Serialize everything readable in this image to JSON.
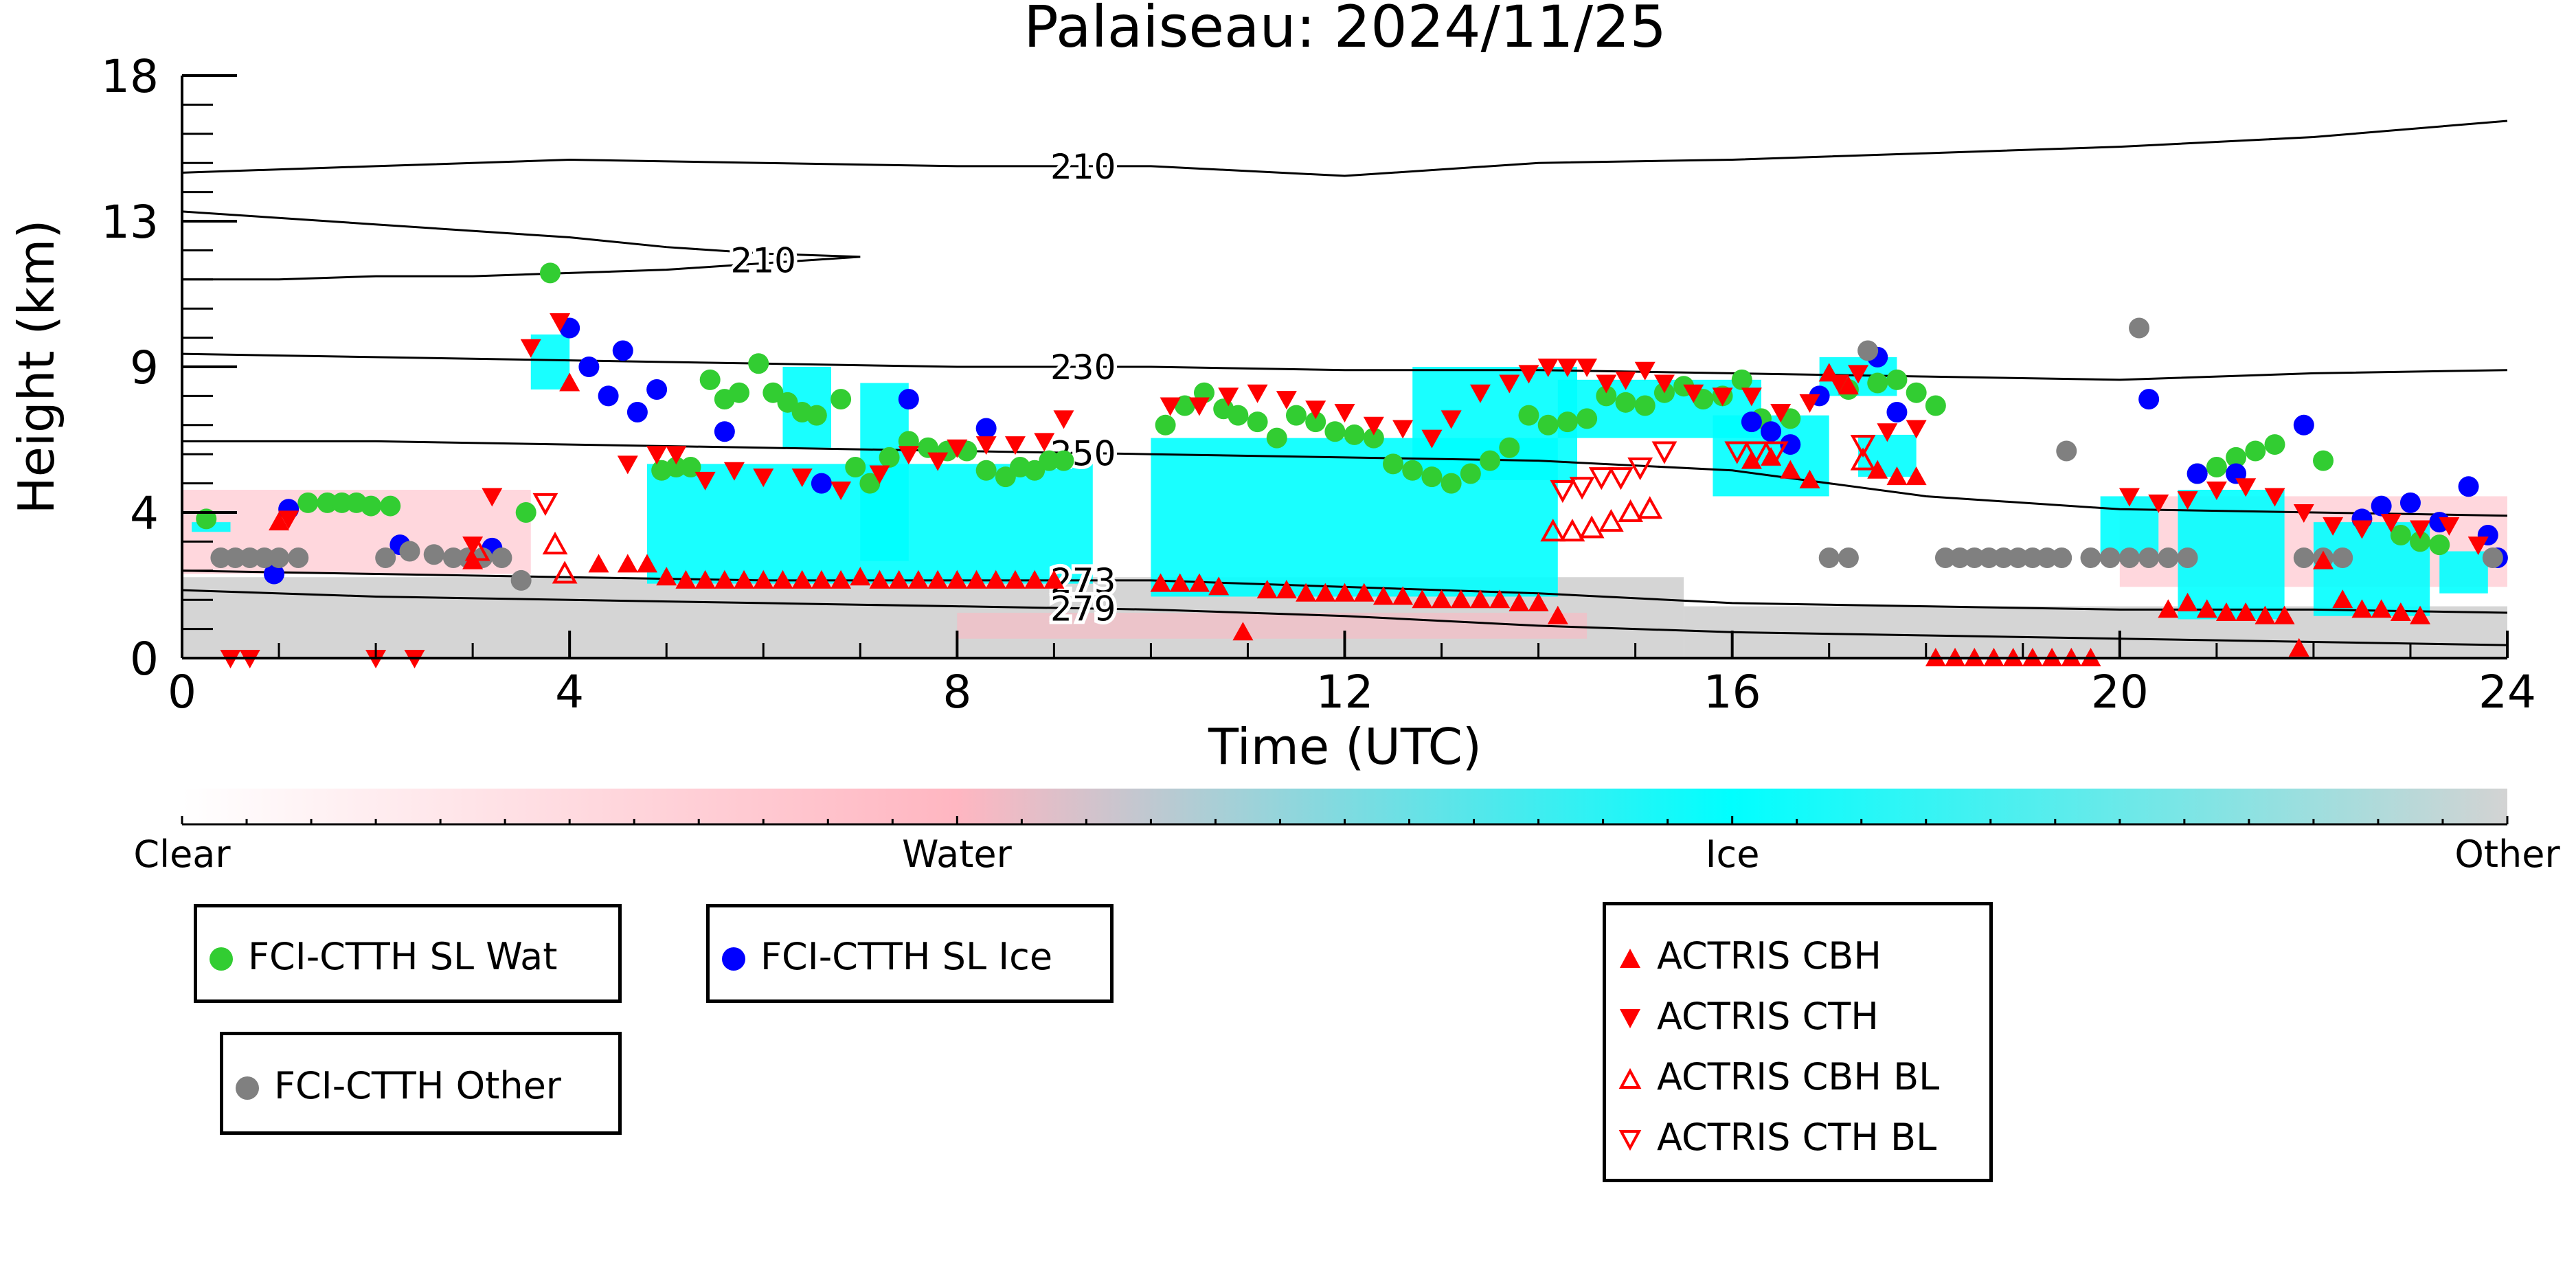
{
  "chart_data": {
    "type": "scatter",
    "title": "Palaiseau: 2024/11/25",
    "xlabel": "Time (UTC)",
    "ylabel": "Height (km)",
    "xlim": [
      0,
      24
    ],
    "ylim": [
      0,
      18
    ],
    "x_ticks": [
      "0",
      "4",
      "8",
      "12",
      "16",
      "20",
      "24"
    ],
    "y_ticks": [
      "0",
      "4",
      "9",
      "13",
      "18"
    ],
    "y_tick_values": [
      0,
      4.5,
      9,
      13.5,
      18
    ],
    "colorbar": {
      "labels": [
        "Clear",
        "Water",
        "Ice",
        "Other"
      ],
      "colors": [
        "#ffffff",
        "#ffb6c1",
        "#00ffff",
        "#d3d3d3"
      ]
    },
    "isotherms": [
      {
        "label": "210",
        "x": [
          0,
          2,
          4,
          6,
          8,
          10,
          12,
          14,
          16,
          18,
          20,
          22,
          24
        ],
        "y": [
          15.0,
          15.2,
          15.4,
          15.3,
          15.2,
          15.2,
          14.9,
          15.3,
          15.4,
          15.6,
          15.8,
          16.1,
          16.6
        ]
      },
      {
        "label": "210",
        "x": [
          0,
          1,
          2,
          3,
          4,
          5,
          6,
          7,
          6,
          5,
          4,
          3,
          2,
          1,
          0
        ],
        "y": [
          13.8,
          13.6,
          13.4,
          13.2,
          13.0,
          12.7,
          12.5,
          12.4,
          12.2,
          12.0,
          11.9,
          11.8,
          11.8,
          11.7,
          11.7
        ]
      },
      {
        "label": "230",
        "x": [
          0,
          2,
          4,
          6,
          8,
          10,
          12,
          14,
          16,
          18,
          20,
          22,
          24
        ],
        "y": [
          9.4,
          9.3,
          9.2,
          9.1,
          9.0,
          9.0,
          8.9,
          8.9,
          8.8,
          8.7,
          8.6,
          8.8,
          8.9
        ]
      },
      {
        "label": "250",
        "x": [
          0,
          2,
          4,
          6,
          8,
          10,
          12,
          14,
          16,
          18,
          20,
          22,
          24
        ],
        "y": [
          6.7,
          6.7,
          6.6,
          6.5,
          6.4,
          6.3,
          6.2,
          6.1,
          5.8,
          5.0,
          4.6,
          4.5,
          4.4
        ]
      },
      {
        "label": "273",
        "x": [
          0,
          2,
          4,
          6,
          8,
          10,
          12,
          14,
          16,
          18,
          20,
          22,
          24
        ],
        "y": [
          2.7,
          2.6,
          2.5,
          2.4,
          2.4,
          2.4,
          2.2,
          2.0,
          1.7,
          1.6,
          1.5,
          1.5,
          1.4
        ]
      },
      {
        "label": "279",
        "x": [
          0,
          2,
          4,
          6,
          8,
          10,
          12,
          14,
          16,
          18,
          20,
          22,
          24
        ],
        "y": [
          2.1,
          1.9,
          1.8,
          1.7,
          1.6,
          1.5,
          1.3,
          1.0,
          0.8,
          0.7,
          0.6,
          0.5,
          0.4
        ]
      }
    ],
    "cloud_regions": [
      {
        "phase": "Ice",
        "x": [
          0.1,
          0.5
        ],
        "y": [
          3.9,
          4.2
        ]
      },
      {
        "phase": "Ice",
        "x": [
          3.6,
          4.0
        ],
        "y": [
          8.3,
          10.0
        ]
      },
      {
        "phase": "Ice",
        "x": [
          4.8,
          9.4
        ],
        "y": [
          2.3,
          6.0
        ]
      },
      {
        "phase": "Ice",
        "x": [
          6.2,
          6.7
        ],
        "y": [
          6.5,
          9.0
        ]
      },
      {
        "phase": "Ice",
        "x": [
          7.0,
          7.5
        ],
        "y": [
          3.0,
          8.5
        ]
      },
      {
        "phase": "Ice",
        "x": [
          10.0,
          14.2
        ],
        "y": [
          1.9,
          6.8
        ]
      },
      {
        "phase": "Ice",
        "x": [
          12.7,
          14.4
        ],
        "y": [
          5.5,
          9.0
        ]
      },
      {
        "phase": "Ice",
        "x": [
          14.2,
          16.3
        ],
        "y": [
          6.8,
          8.6
        ]
      },
      {
        "phase": "Ice",
        "x": [
          15.8,
          17.0
        ],
        "y": [
          5.0,
          7.5
        ]
      },
      {
        "phase": "Ice",
        "x": [
          16.9,
          17.7
        ],
        "y": [
          8.1,
          9.3
        ]
      },
      {
        "phase": "Ice",
        "x": [
          17.3,
          17.9
        ],
        "y": [
          5.6,
          6.9
        ]
      },
      {
        "phase": "Ice",
        "x": [
          19.8,
          20.4
        ],
        "y": [
          3.0,
          5.0
        ]
      },
      {
        "phase": "Ice",
        "x": [
          20.6,
          21.7
        ],
        "y": [
          1.2,
          5.2
        ]
      },
      {
        "phase": "Ice",
        "x": [
          22.0,
          23.2
        ],
        "y": [
          1.3,
          4.2
        ]
      },
      {
        "phase": "Ice",
        "x": [
          23.3,
          23.8
        ],
        "y": [
          2.0,
          3.3
        ]
      },
      {
        "phase": "Water",
        "x": [
          0.0,
          3.6
        ],
        "y": [
          2.6,
          5.2
        ]
      },
      {
        "phase": "Water",
        "x": [
          20.0,
          24.0
        ],
        "y": [
          2.2,
          5.0
        ]
      },
      {
        "phase": "Water",
        "x": [
          8.0,
          14.5
        ],
        "y": [
          0.6,
          1.4
        ]
      },
      {
        "phase": "Other",
        "x": [
          0.0,
          15.5
        ],
        "y": [
          0.0,
          2.5
        ]
      },
      {
        "phase": "Other",
        "x": [
          15.5,
          24.0
        ],
        "y": [
          0.0,
          1.6
        ]
      }
    ],
    "series": [
      {
        "name": "FCI-CTTH SL Wat",
        "color": "#32cd32",
        "marker": "circle",
        "x": [
          0.25,
          1.3,
          1.5,
          1.65,
          1.8,
          1.95,
          2.15,
          3.55,
          3.8,
          4.95,
          5.1,
          5.25,
          5.45,
          5.6,
          5.75,
          5.95,
          6.1,
          6.25,
          6.4,
          6.55,
          6.8,
          6.95,
          7.1,
          7.3,
          7.5,
          7.7,
          7.9,
          8.1,
          8.3,
          8.5,
          8.65,
          8.8,
          8.95,
          9.1,
          10.15,
          10.35,
          10.55,
          10.75,
          10.9,
          11.1,
          11.3,
          11.5,
          11.7,
          11.9,
          12.1,
          12.3,
          12.5,
          12.7,
          12.9,
          13.1,
          13.3,
          13.5,
          13.7,
          13.9,
          14.1,
          14.3,
          14.5,
          14.7,
          14.9,
          15.1,
          15.3,
          15.5,
          15.7,
          15.9,
          16.1,
          16.3,
          16.6,
          17.2,
          17.5,
          17.7,
          17.9,
          18.1,
          20.8,
          21.0,
          21.2,
          21.4,
          21.6,
          22.1,
          22.9,
          23.1,
          23.3
        ],
        "y": [
          4.3,
          4.8,
          4.8,
          4.8,
          4.8,
          4.7,
          4.7,
          4.5,
          11.9,
          5.8,
          5.9,
          5.9,
          8.6,
          8.0,
          8.2,
          9.1,
          8.2,
          7.9,
          7.6,
          7.5,
          8.0,
          5.9,
          5.4,
          6.2,
          6.7,
          6.5,
          6.4,
          6.4,
          5.8,
          5.6,
          5.9,
          5.8,
          6.1,
          6.1,
          7.2,
          7.8,
          8.2,
          7.7,
          7.5,
          7.3,
          6.8,
          7.5,
          7.3,
          7.0,
          6.9,
          6.8,
          6.0,
          5.8,
          5.6,
          5.4,
          5.7,
          6.1,
          6.5,
          7.5,
          7.2,
          7.3,
          7.4,
          8.1,
          7.9,
          7.8,
          8.2,
          8.4,
          8.0,
          8.1,
          8.6,
          7.4,
          7.4,
          8.3,
          8.5,
          8.6,
          8.2,
          7.8,
          5.7,
          5.9,
          6.2,
          6.4,
          6.6,
          6.1,
          3.8,
          3.6,
          3.5
        ],
        "y_scaled_note": ""
      },
      {
        "name": "FCI-CTTH SL Ice",
        "color": "#0000ff",
        "marker": "circle",
        "x": [
          1.1,
          0.95,
          2.25,
          3.2,
          4.0,
          4.2,
          4.4,
          4.55,
          4.7,
          4.9,
          5.6,
          6.6,
          7.5,
          8.3,
          16.2,
          16.4,
          16.6,
          16.9,
          17.5,
          17.7,
          20.3,
          20.8,
          21.2,
          21.9,
          22.5,
          22.7,
          23.0,
          23.3,
          23.6,
          23.8,
          23.9
        ],
        "y": [
          4.6,
          2.6,
          3.5,
          3.4,
          10.2,
          9.0,
          8.1,
          9.5,
          7.6,
          8.3,
          7.0,
          5.4,
          8.0,
          7.1,
          7.3,
          7.0,
          6.6,
          8.1,
          9.3,
          7.6,
          8.0,
          5.7,
          5.7,
          7.2,
          4.3,
          4.7,
          4.8,
          4.2,
          5.3,
          3.8,
          3.1
        ]
      },
      {
        "name": "FCI-CTTH Other",
        "color": "#808080",
        "marker": "circle",
        "x": [
          0.4,
          0.55,
          0.7,
          0.85,
          1.0,
          1.2,
          2.1,
          2.35,
          2.6,
          2.8,
          2.95,
          3.1,
          3.3,
          3.5,
          17.0,
          17.2,
          17.4,
          18.2,
          18.35,
          18.5,
          18.65,
          18.8,
          18.95,
          19.1,
          19.25,
          19.4,
          19.7,
          19.9,
          20.1,
          20.3,
          20.5,
          20.7,
          21.9,
          22.1,
          22.3,
          19.45,
          20.2,
          23.85
        ],
        "y": [
          3.1,
          3.1,
          3.1,
          3.1,
          3.1,
          3.1,
          3.1,
          3.3,
          3.2,
          3.1,
          3.1,
          3.1,
          3.1,
          2.4,
          3.1,
          3.1,
          9.5,
          3.1,
          3.1,
          3.1,
          3.1,
          3.1,
          3.1,
          3.1,
          3.1,
          3.1,
          3.1,
          3.1,
          3.1,
          3.1,
          3.1,
          3.1,
          3.1,
          3.1,
          3.1,
          6.4,
          10.2,
          3.1
        ]
      },
      {
        "name": "ACTRIS CBH",
        "color": "#ff0000",
        "marker": "triangle-up",
        "x": [
          1.0,
          3.0,
          4.0,
          4.3,
          4.6,
          4.8,
          5.0,
          5.2,
          5.4,
          5.6,
          5.8,
          6.0,
          6.2,
          6.4,
          6.6,
          6.8,
          7.0,
          7.2,
          7.4,
          7.6,
          7.8,
          8.0,
          8.2,
          8.4,
          8.6,
          8.8,
          9.0,
          10.1,
          10.3,
          10.5,
          10.7,
          10.95,
          11.2,
          11.4,
          11.6,
          11.8,
          12.0,
          12.2,
          12.4,
          12.6,
          12.8,
          13.0,
          13.2,
          13.4,
          13.6,
          13.8,
          14.0,
          14.2,
          16.2,
          16.4,
          16.6,
          16.8,
          17.0,
          17.2,
          17.5,
          17.7,
          17.9,
          18.1,
          18.3,
          18.5,
          18.7,
          18.9,
          19.1,
          19.3,
          19.5,
          19.7,
          20.5,
          20.7,
          20.9,
          21.1,
          21.3,
          21.5,
          21.7,
          21.85,
          22.1,
          22.3,
          22.5,
          22.7,
          22.9,
          23.1
        ],
        "y": [
          4.2,
          3.0,
          8.5,
          2.9,
          2.9,
          2.9,
          2.5,
          2.4,
          2.4,
          2.4,
          2.4,
          2.4,
          2.4,
          2.4,
          2.4,
          2.4,
          2.5,
          2.4,
          2.4,
          2.4,
          2.4,
          2.4,
          2.4,
          2.4,
          2.4,
          2.4,
          2.4,
          2.3,
          2.3,
          2.3,
          2.2,
          0.8,
          2.1,
          2.1,
          2.0,
          2.0,
          2.0,
          2.0,
          1.9,
          1.9,
          1.8,
          1.8,
          1.8,
          1.8,
          1.8,
          1.7,
          1.7,
          1.3,
          6.1,
          6.2,
          5.8,
          5.5,
          8.8,
          8.4,
          5.8,
          5.6,
          5.6,
          0.0,
          0.0,
          0.0,
          0.0,
          0.0,
          0.0,
          0.0,
          0.0,
          0.0,
          1.5,
          1.7,
          1.5,
          1.4,
          1.4,
          1.3,
          1.3,
          0.3,
          3.0,
          1.8,
          1.5,
          1.5,
          1.4,
          1.3
        ]
      },
      {
        "name": "ACTRIS CTH",
        "color": "#ff0000",
        "marker": "triangle-down",
        "x": [
          0.5,
          0.7,
          1.1,
          2.0,
          2.4,
          3.0,
          3.2,
          3.9,
          3.6,
          4.6,
          4.9,
          5.1,
          5.4,
          5.7,
          6.0,
          6.4,
          6.8,
          7.2,
          7.5,
          7.8,
          8.0,
          8.3,
          8.6,
          8.9,
          9.1,
          10.2,
          10.5,
          10.8,
          11.1,
          11.4,
          11.7,
          12.0,
          12.3,
          12.6,
          12.9,
          13.1,
          13.4,
          13.7,
          13.9,
          14.1,
          14.3,
          14.5,
          14.7,
          14.9,
          15.1,
          15.3,
          15.6,
          15.9,
          16.2,
          16.5,
          16.8,
          17.1,
          17.3,
          17.6,
          17.9,
          20.1,
          20.4,
          20.7,
          21.0,
          21.3,
          21.6,
          21.9,
          22.2,
          22.5,
          22.8,
          23.1,
          23.4,
          23.7
        ],
        "y": [
          0.0,
          0.0,
          4.3,
          0.0,
          0.0,
          3.5,
          5.0,
          10.4,
          9.6,
          6.0,
          6.3,
          6.3,
          5.5,
          5.8,
          5.6,
          5.6,
          5.2,
          5.7,
          6.3,
          6.1,
          6.5,
          6.6,
          6.6,
          6.7,
          7.4,
          7.8,
          7.8,
          8.1,
          8.2,
          8.0,
          7.7,
          7.6,
          7.2,
          7.1,
          6.8,
          7.4,
          8.2,
          8.5,
          8.8,
          9.0,
          9.0,
          9.0,
          8.5,
          8.6,
          8.9,
          8.5,
          8.2,
          8.1,
          8.1,
          7.6,
          7.9,
          8.5,
          8.8,
          7.0,
          7.1,
          5.0,
          4.8,
          4.9,
          5.2,
          5.3,
          5.0,
          4.5,
          4.1,
          4.0,
          4.2,
          4.0,
          4.1,
          3.5
        ]
      },
      {
        "name": "ACTRIS CBH BL",
        "color": "#ff0000",
        "marker": "triangle-up-open",
        "x": [
          3.05,
          3.85,
          3.95,
          14.15,
          14.35,
          14.55,
          14.75,
          14.95,
          15.15,
          17.35
        ],
        "y": [
          3.3,
          3.5,
          2.6,
          3.9,
          3.9,
          4.0,
          4.2,
          4.5,
          4.6,
          6.1
        ]
      },
      {
        "name": "ACTRIS CTH BL",
        "color": "#ff0000",
        "marker": "triangle-down-open",
        "x": [
          3.75,
          14.25,
          14.45,
          14.65,
          14.85,
          15.05,
          15.3,
          16.05,
          16.25,
          16.45,
          17.35
        ],
        "y": [
          4.8,
          5.2,
          5.3,
          5.6,
          5.6,
          5.9,
          6.4,
          6.4,
          6.4,
          6.4,
          6.6
        ]
      }
    ]
  },
  "legend": {
    "wat": "FCI-CTTH SL Wat",
    "ice": "FCI-CTTH SL Ice",
    "other": "FCI-CTTH Other",
    "cbh": "ACTRIS CBH",
    "cth": "ACTRIS CTH",
    "cbh_bl": "ACTRIS CBH BL",
    "cth_bl": "ACTRIS CTH BL"
  }
}
